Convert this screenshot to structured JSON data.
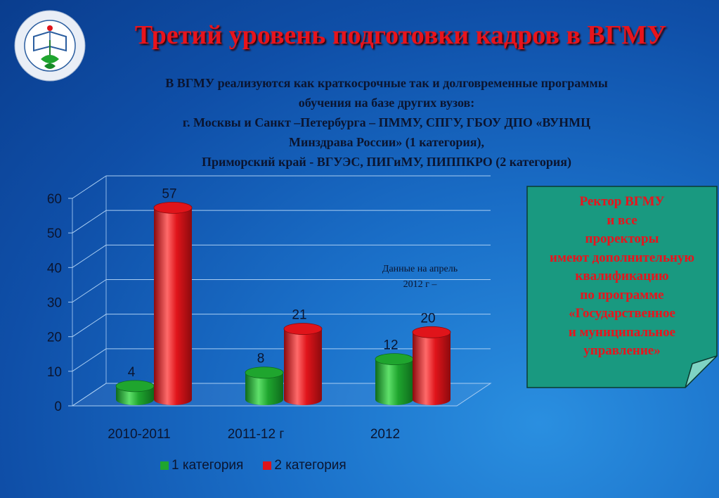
{
  "page": {
    "title": "Третий уровень подготовки кадров в ВГМУ",
    "intro_lines": [
      "В ВГМУ реализуются как краткосрочные так и долговременные программы",
      "обучения на базе других вузов:",
      "г. Москвы и Санкт –Петербурга – ПММУ, СПГУ, ГБОУ ДПО «ВУНМЦ",
      "Минздрава России» (1 категория),",
      "Приморский край - ВГУЭС,  ПИГиМУ, ПИППКРО (2 категория)"
    ],
    "note": "Данные на апрель 2012 г –",
    "callout_lines": [
      "Ректор ВГМУ",
      "и все",
      "проректоры",
      "имеют дополнительную",
      "квалификацию",
      "по программе",
      "«Государственное",
      "и муниципальное",
      "управление»"
    ],
    "logo_icon": "university-emblem-icon"
  },
  "colors": {
    "title": "#e8141c",
    "series1": "#1fa52e",
    "series2": "#e0141a",
    "callout_bg": "#199980"
  },
  "chart_data": {
    "type": "bar",
    "categories": [
      "2010-2011",
      "2011-12 г",
      "2012"
    ],
    "series": [
      {
        "name": "1 категория",
        "values": [
          4,
          8,
          12
        ]
      },
      {
        "name": "2 категория",
        "values": [
          57,
          21,
          20
        ]
      }
    ],
    "ylim": [
      0,
      60
    ],
    "yticks": [
      0,
      10,
      20,
      30,
      40,
      50,
      60
    ],
    "grid": true,
    "legend": "bottom"
  }
}
